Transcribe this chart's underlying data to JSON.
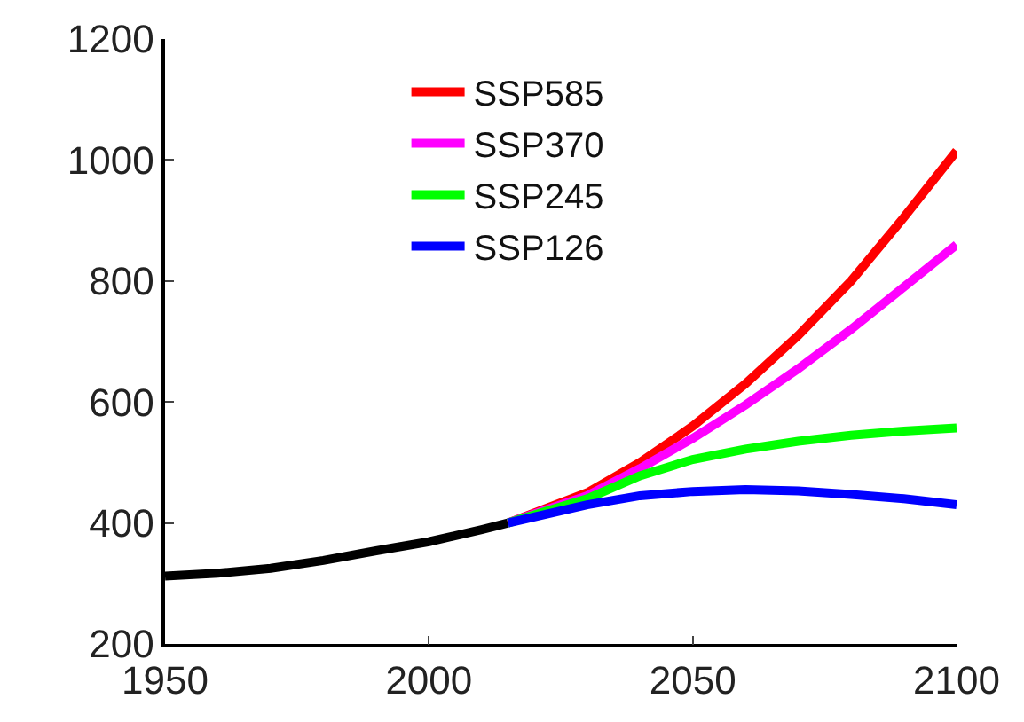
{
  "chart_data": {
    "type": "line",
    "xlim": [
      1950,
      2100
    ],
    "ylim": [
      200,
      1200
    ],
    "xticks": [
      1950,
      2000,
      2050,
      2100
    ],
    "yticks": [
      200,
      400,
      600,
      800,
      1000,
      1200
    ],
    "grid": false,
    "legend": "top",
    "marker": "none",
    "line_style": "solid",
    "series": [
      {
        "color": "#000000",
        "x": [
          1950,
          1960,
          1970,
          1980,
          1990,
          2000,
          2010,
          2015
        ],
        "values": [
          312,
          317,
          325,
          338,
          354,
          369,
          389,
          400
        ]
      },
      {
        "name": "SSP585",
        "color": "#ff0000",
        "x": [
          2015,
          2030,
          2040,
          2050,
          2060,
          2070,
          2080,
          2090,
          2100
        ],
        "values": [
          400,
          450,
          500,
          560,
          630,
          710,
          800,
          905,
          1015
        ]
      },
      {
        "name": "SSP370",
        "color": "#ff00ff",
        "x": [
          2015,
          2030,
          2040,
          2050,
          2060,
          2070,
          2080,
          2090,
          2100
        ],
        "values": [
          400,
          445,
          490,
          540,
          595,
          655,
          720,
          790,
          860
        ]
      },
      {
        "name": "SSP245",
        "color": "#00ff00",
        "x": [
          2015,
          2030,
          2040,
          2050,
          2060,
          2070,
          2080,
          2090,
          2100
        ],
        "values": [
          400,
          440,
          478,
          505,
          522,
          535,
          545,
          552,
          557
        ]
      },
      {
        "name": "SSP126",
        "color": "#0000ff",
        "x": [
          2015,
          2030,
          2040,
          2050,
          2060,
          2070,
          2080,
          2090,
          2100
        ],
        "values": [
          400,
          430,
          445,
          452,
          455,
          453,
          447,
          440,
          430
        ]
      }
    ]
  }
}
